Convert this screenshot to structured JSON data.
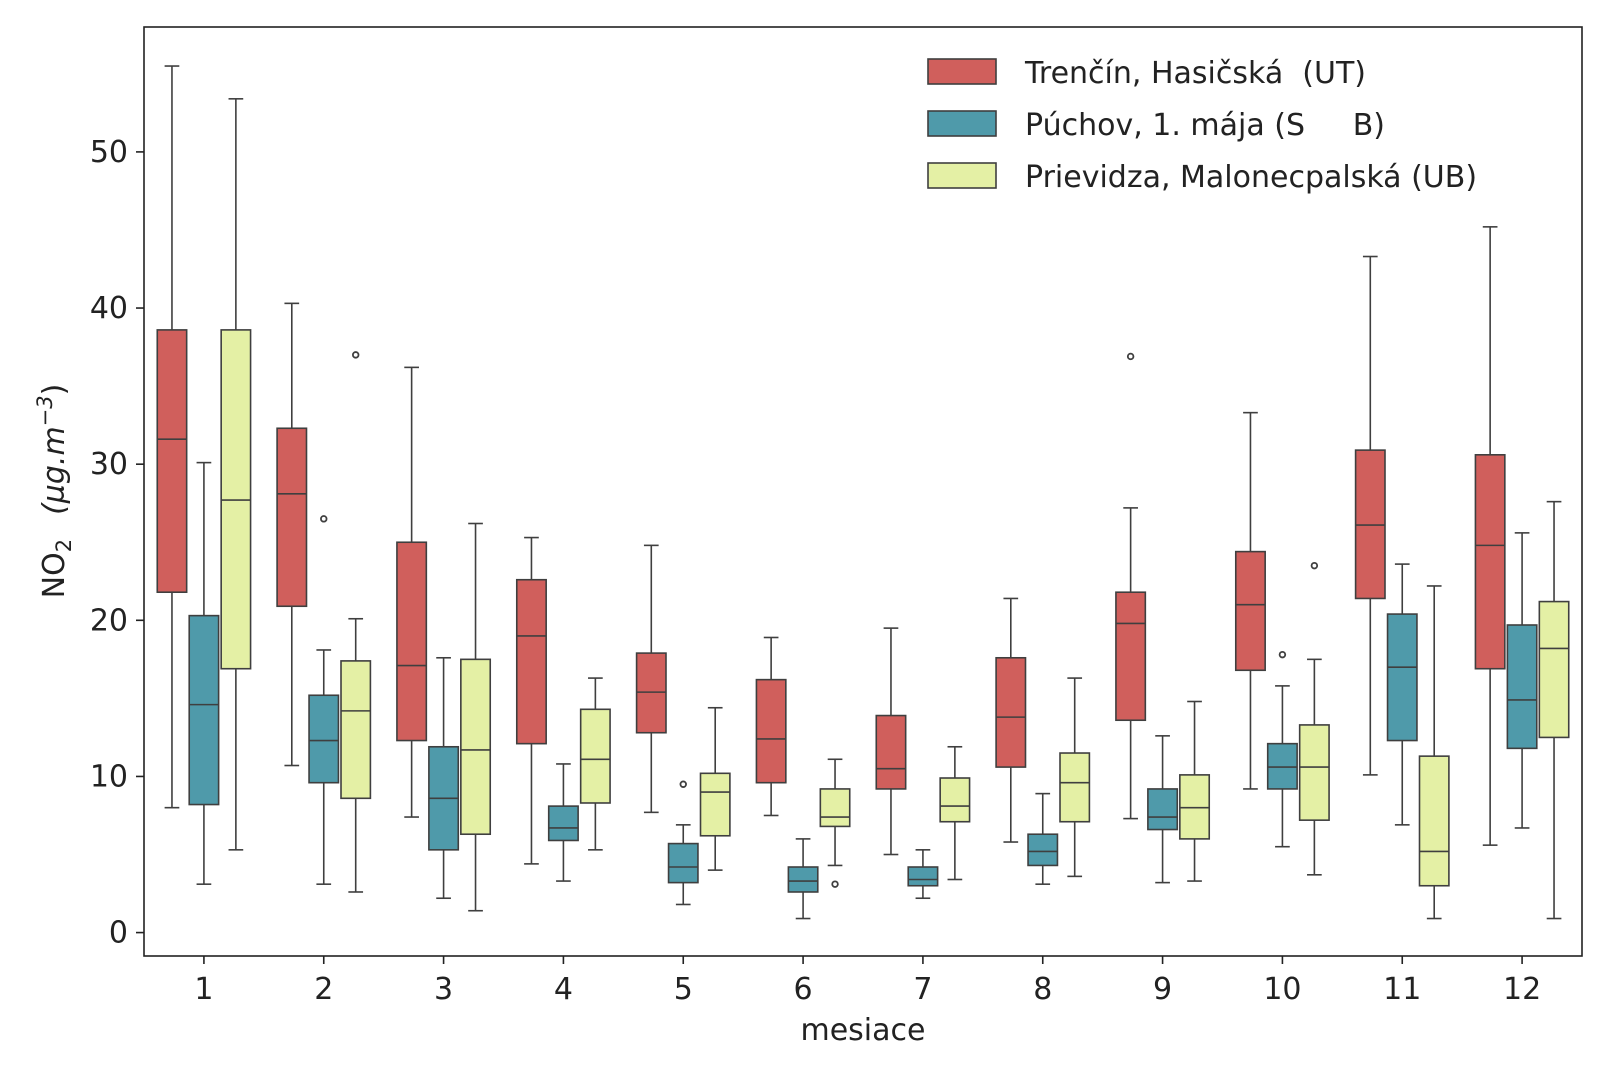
{
  "chart_data": {
    "type": "box",
    "title": "",
    "xlabel": "mesiace",
    "ylabel": {
      "main": "NO",
      "sub": "2",
      "unit": "(µg.m",
      "exp": "−3",
      "close": ")"
    },
    "ylim": [
      -1.5,
      58
    ],
    "yticks": [
      0,
      10,
      20,
      30,
      40,
      50
    ],
    "categories": [
      "1",
      "2",
      "3",
      "4",
      "5",
      "6",
      "7",
      "8",
      "9",
      "10",
      "11",
      "12"
    ],
    "legend_position": "top-right",
    "series": [
      {
        "name": "Trenčín, Hasičská  (UT)",
        "color": "#d05f5c",
        "boxes": [
          {
            "whislo": 8.0,
            "q1": 21.8,
            "med": 31.6,
            "q3": 38.6,
            "whishi": 55.5,
            "fliers": []
          },
          {
            "whislo": 10.7,
            "q1": 20.9,
            "med": 28.1,
            "q3": 32.3,
            "whishi": 40.3,
            "fliers": []
          },
          {
            "whislo": 7.4,
            "q1": 12.3,
            "med": 17.1,
            "q3": 25.0,
            "whishi": 36.2,
            "fliers": []
          },
          {
            "whislo": 4.4,
            "q1": 12.1,
            "med": 19.0,
            "q3": 22.6,
            "whishi": 25.3,
            "fliers": []
          },
          {
            "whislo": 7.7,
            "q1": 12.8,
            "med": 15.4,
            "q3": 17.9,
            "whishi": 24.8,
            "fliers": []
          },
          {
            "whislo": 7.5,
            "q1": 9.6,
            "med": 12.4,
            "q3": 16.2,
            "whishi": 18.9,
            "fliers": []
          },
          {
            "whislo": 5.0,
            "q1": 9.2,
            "med": 10.5,
            "q3": 13.9,
            "whishi": 19.5,
            "fliers": []
          },
          {
            "whislo": 5.8,
            "q1": 10.6,
            "med": 13.8,
            "q3": 17.6,
            "whishi": 21.4,
            "fliers": []
          },
          {
            "whislo": 7.3,
            "q1": 13.6,
            "med": 19.8,
            "q3": 21.8,
            "whishi": 27.2,
            "fliers": [
              36.9
            ]
          },
          {
            "whislo": 9.2,
            "q1": 16.8,
            "med": 21.0,
            "q3": 24.4,
            "whishi": 33.3,
            "fliers": []
          },
          {
            "whislo": 10.1,
            "q1": 21.4,
            "med": 26.1,
            "q3": 30.9,
            "whishi": 43.3,
            "fliers": []
          },
          {
            "whislo": 5.6,
            "q1": 16.9,
            "med": 24.8,
            "q3": 30.6,
            "whishi": 45.2,
            "fliers": []
          }
        ]
      },
      {
        "name": "Púchov, 1. mája (S     B)",
        "color": "#4f9aaa",
        "boxes": [
          {
            "whislo": 3.1,
            "q1": 8.2,
            "med": 14.6,
            "q3": 20.3,
            "whishi": 30.1,
            "fliers": []
          },
          {
            "whislo": 3.1,
            "q1": 9.6,
            "med": 12.3,
            "q3": 15.2,
            "whishi": 18.1,
            "fliers": [
              26.5
            ]
          },
          {
            "whislo": 2.2,
            "q1": 5.3,
            "med": 8.6,
            "q3": 11.9,
            "whishi": 17.6,
            "fliers": []
          },
          {
            "whislo": 3.3,
            "q1": 5.9,
            "med": 6.7,
            "q3": 8.1,
            "whishi": 10.8,
            "fliers": []
          },
          {
            "whislo": 1.8,
            "q1": 3.2,
            "med": 4.2,
            "q3": 5.7,
            "whishi": 6.9,
            "fliers": [
              9.5
            ]
          },
          {
            "whislo": 0.9,
            "q1": 2.6,
            "med": 3.3,
            "q3": 4.2,
            "whishi": 6.0,
            "fliers": []
          },
          {
            "whislo": 2.2,
            "q1": 3.0,
            "med": 3.4,
            "q3": 4.2,
            "whishi": 5.3,
            "fliers": []
          },
          {
            "whislo": 3.1,
            "q1": 4.3,
            "med": 5.2,
            "q3": 6.3,
            "whishi": 8.9,
            "fliers": []
          },
          {
            "whislo": 3.2,
            "q1": 6.6,
            "med": 7.4,
            "q3": 9.2,
            "whishi": 12.6,
            "fliers": []
          },
          {
            "whislo": 5.5,
            "q1": 9.2,
            "med": 10.6,
            "q3": 12.1,
            "whishi": 15.8,
            "fliers": [
              17.8
            ]
          },
          {
            "whislo": 6.9,
            "q1": 12.3,
            "med": 17.0,
            "q3": 20.4,
            "whishi": 23.6,
            "fliers": []
          },
          {
            "whislo": 6.7,
            "q1": 11.8,
            "med": 14.9,
            "q3": 19.7,
            "whishi": 25.6,
            "fliers": []
          }
        ]
      },
      {
        "name": "Prievidza, Malonecpalská (UB)",
        "color": "#e4f0a5",
        "boxes": [
          {
            "whislo": 5.3,
            "q1": 16.9,
            "med": 27.7,
            "q3": 38.6,
            "whishi": 53.4,
            "fliers": []
          },
          {
            "whislo": 2.6,
            "q1": 8.6,
            "med": 14.2,
            "q3": 17.4,
            "whishi": 20.1,
            "fliers": [
              37.0
            ]
          },
          {
            "whislo": 1.4,
            "q1": 6.3,
            "med": 11.7,
            "q3": 17.5,
            "whishi": 26.2,
            "fliers": []
          },
          {
            "whislo": 5.3,
            "q1": 8.3,
            "med": 11.1,
            "q3": 14.3,
            "whishi": 16.3,
            "fliers": []
          },
          {
            "whislo": 4.0,
            "q1": 6.2,
            "med": 9.0,
            "q3": 10.2,
            "whishi": 14.4,
            "fliers": []
          },
          {
            "whislo": 4.3,
            "q1": 6.8,
            "med": 7.4,
            "q3": 9.2,
            "whishi": 11.1,
            "fliers": [
              3.1
            ]
          },
          {
            "whislo": 3.4,
            "q1": 7.1,
            "med": 8.1,
            "q3": 9.9,
            "whishi": 11.9,
            "fliers": []
          },
          {
            "whislo": 3.6,
            "q1": 7.1,
            "med": 9.6,
            "q3": 11.5,
            "whishi": 16.3,
            "fliers": []
          },
          {
            "whislo": 3.3,
            "q1": 6.0,
            "med": 8.0,
            "q3": 10.1,
            "whishi": 14.8,
            "fliers": []
          },
          {
            "whislo": 3.7,
            "q1": 7.2,
            "med": 10.6,
            "q3": 13.3,
            "whishi": 17.5,
            "fliers": [
              23.5
            ]
          },
          {
            "whislo": 0.9,
            "q1": 3.0,
            "med": 5.2,
            "q3": 11.3,
            "whishi": 22.2,
            "fliers": []
          },
          {
            "whislo": 0.9,
            "q1": 12.5,
            "med": 18.2,
            "q3": 21.2,
            "whishi": 27.6,
            "fliers": []
          }
        ]
      }
    ]
  }
}
